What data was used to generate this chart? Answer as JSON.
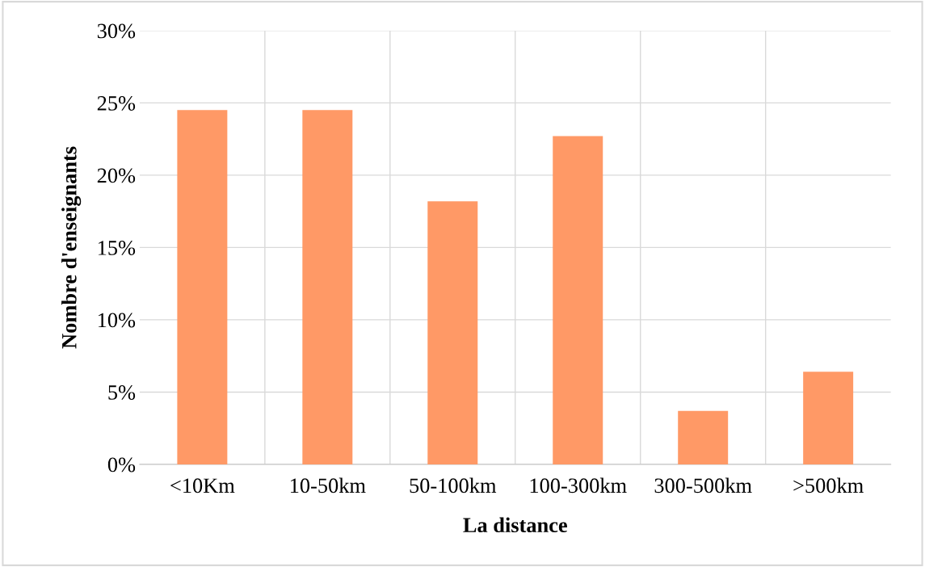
{
  "chart_data": {
    "type": "bar",
    "xlabel": "La distance",
    "ylabel": "Nombre d'enseignants",
    "categories": [
      "<10Km",
      "10-50km",
      "50-100km",
      "100-300km",
      "300-500km",
      ">500km"
    ],
    "values": [
      24.5,
      24.5,
      18.2,
      22.7,
      3.7,
      6.4
    ],
    "color": "#ff9966",
    "ylim": [
      0,
      30
    ],
    "yticks": [
      {
        "value": 0,
        "label": "0%"
      },
      {
        "value": 5,
        "label": "5%"
      },
      {
        "value": 10,
        "label": "10%"
      },
      {
        "value": 15,
        "label": "15%"
      },
      {
        "value": 20,
        "label": "20%"
      },
      {
        "value": 25,
        "label": "25%"
      },
      {
        "value": 30,
        "label": "30%"
      }
    ],
    "grid": true,
    "legend": false
  }
}
